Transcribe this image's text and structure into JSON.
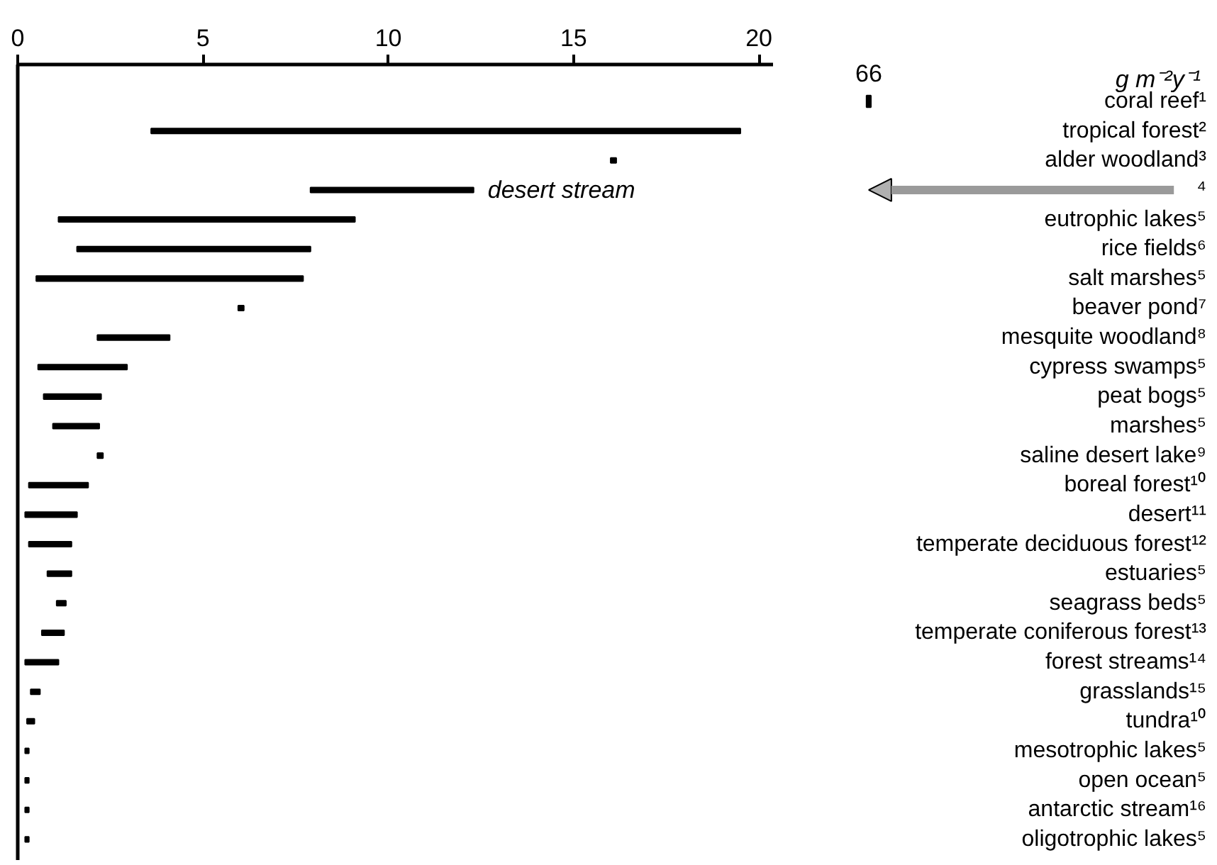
{
  "chart_data": [
    {
      "type": "bar",
      "orientation": "horizontal",
      "tick_labels": "x",
      "xlim": [
        0,
        20.4
      ],
      "xticks": [
        0,
        5,
        10,
        15,
        20
      ],
      "grid": false,
      "categories": [
        "coral reef¹",
        "tropical forest²",
        "alder woodland³",
        "⁴",
        "eutrophic lakes⁵",
        "rice fields⁶",
        "salt marshes⁵",
        "beaver pond⁷",
        "mesquite woodland⁸",
        "cypress swamps⁵",
        "peat bogs⁵",
        "marshes⁵",
        "saline desert lake⁹",
        "boreal forest¹⁰",
        "desert¹¹",
        "temperate deciduous forest¹²",
        "estuaries⁵",
        "seagrass beds⁵",
        "temperate coniferous forest¹³",
        "forest streams¹⁴",
        "grasslands¹⁵",
        "tundra¹⁰",
        "mesotrophic lakes⁵",
        "open ocean⁵",
        "antarctic stream¹⁶",
        "oligotrophic lakes⁵"
      ],
      "annotations": [
        {
          "text": "desert stream",
          "x": 12.3,
          "y": "⁴"
        }
      ],
      "series": [
        {
          "color": "#000000",
          "base": [
            null,
            3.6,
            16.0,
            7.9,
            1.1,
            1.6,
            0.5,
            5.95,
            2.15,
            0.55,
            0.7,
            0.95,
            2.15,
            0.3,
            0.2,
            0.3,
            0.8,
            1.05,
            0.65,
            0.2,
            0.35,
            0.25,
            0.2,
            0.2,
            0.2,
            0.2
          ],
          "values": [
            null,
            15.9,
            0.15,
            4.4,
            8.0,
            6.3,
            7.2,
            0.15,
            1.95,
            2.4,
            1.55,
            1.25,
            0.15,
            1.6,
            1.4,
            1.15,
            0.65,
            0.25,
            0.6,
            0.9,
            0.25,
            0.2,
            0.1,
            0.1,
            0.1,
            0.1
          ]
        }
      ]
    },
    {
      "type": "other",
      "xlabel": "g m⁻²y⁻¹",
      "categories": [
        "coral reef¹",
        "tropical forest²",
        "alder woodland³",
        "⁴",
        "eutrophic lakes⁵",
        "rice fields⁶",
        "salt marshes⁵",
        "beaver pond⁷",
        "mesquite woodland⁸",
        "cypress swamps⁵",
        "peat bogs⁵",
        "marshes⁵",
        "saline desert lake⁹",
        "boreal forest¹⁰",
        "desert¹¹",
        "temperate deciduous forest¹²",
        "estuaries⁵",
        "seagrass beds⁵",
        "temperate coniferous forest¹³",
        "forest streams¹⁴",
        "grasslands¹⁵",
        "tundra¹⁰",
        "mesotrophic lakes⁵",
        "open ocean⁵",
        "antarctic stream¹⁶",
        "oligotrophic lakes⁵"
      ],
      "series": [
        {
          "color": "#000000",
          "values": [
            66,
            null,
            null,
            null,
            null,
            null,
            null,
            null,
            null,
            null,
            null,
            null,
            null,
            null,
            null,
            null,
            null,
            null,
            null,
            null,
            null,
            null,
            null,
            null,
            null,
            null
          ],
          "value_labels": [
            "66",
            null,
            null,
            null,
            null,
            null,
            null,
            null,
            null,
            null,
            null,
            null,
            null,
            null,
            null,
            null,
            null,
            null,
            null,
            null,
            null,
            null,
            null,
            null,
            null,
            null
          ]
        }
      ]
    }
  ]
}
